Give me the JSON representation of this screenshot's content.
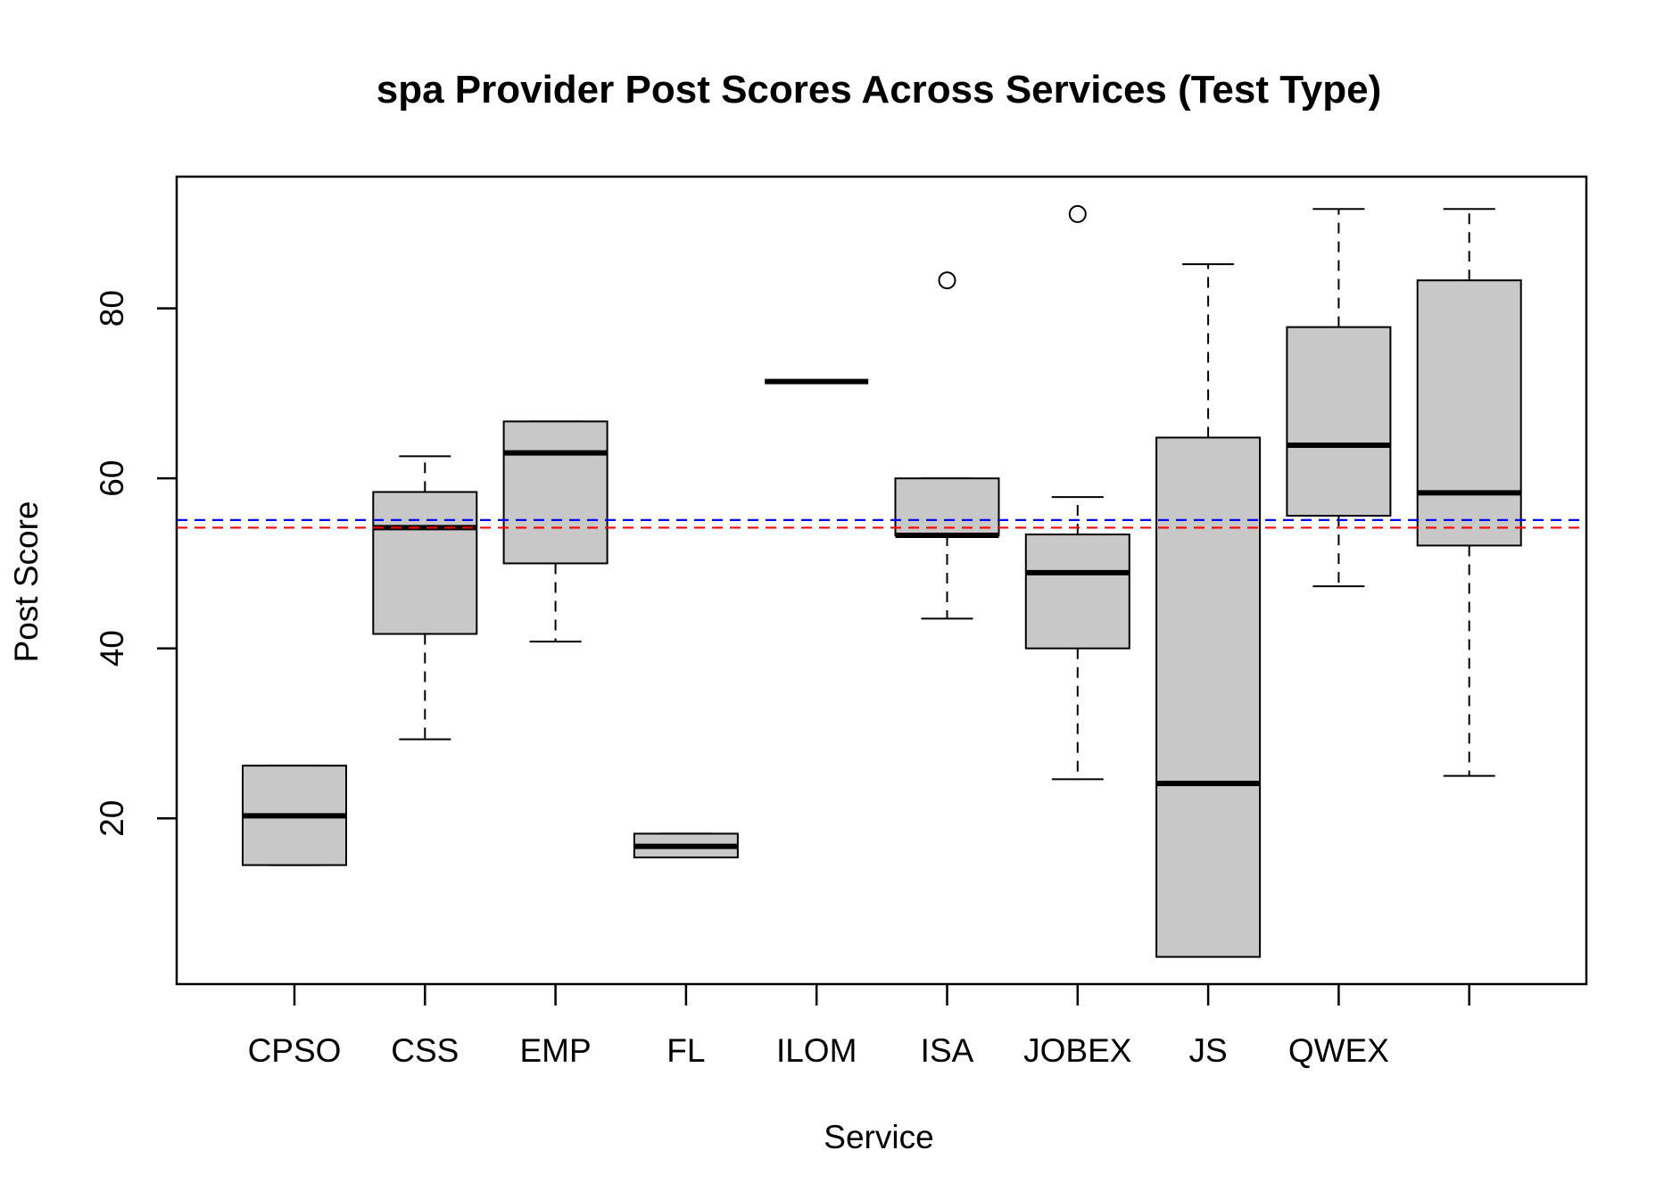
{
  "chart_data": {
    "type": "boxplot",
    "title": "spa Provider Post Scores Across Services (Test Type)",
    "xlabel": "Service",
    "ylabel": "Post Score",
    "ylim": [
      0.5,
      95.5
    ],
    "y_ticks": [
      20,
      40,
      60,
      80
    ],
    "categories": [
      "CPSO",
      "CSS",
      "EMP",
      "FL",
      "ILOM",
      "ISA",
      "JOBEX",
      "JS",
      "QWEX",
      ""
    ],
    "boxes": [
      {
        "category": "CPSO",
        "whisker_low": 14.5,
        "q1": 14.5,
        "median": 20.3,
        "q3": 26.2,
        "whisker_high": 26.2,
        "outliers": []
      },
      {
        "category": "CSS",
        "whisker_low": 29.3,
        "q1": 41.7,
        "median": 54.2,
        "q3": 58.4,
        "whisker_high": 62.6,
        "outliers": []
      },
      {
        "category": "EMP",
        "whisker_low": 40.8,
        "q1": 50.0,
        "median": 63.0,
        "q3": 66.7,
        "whisker_high": 66.7,
        "outliers": []
      },
      {
        "category": "FL",
        "whisker_low": 15.4,
        "q1": 15.4,
        "median": 16.7,
        "q3": 18.2,
        "whisker_high": 18.2,
        "outliers": []
      },
      {
        "category": "ILOM",
        "whisker_low": 71.4,
        "q1": 71.4,
        "median": 71.4,
        "q3": 71.4,
        "whisker_high": 71.4,
        "outliers": []
      },
      {
        "category": "ISA",
        "whisker_low": 43.5,
        "q1": 53.3,
        "median": 53.3,
        "q3": 60.0,
        "whisker_high": 60.0,
        "outliers": [
          83.3
        ]
      },
      {
        "category": "JOBEX",
        "whisker_low": 24.6,
        "q1": 40.0,
        "median": 48.9,
        "q3": 53.4,
        "whisker_high": 57.8,
        "outliers": [
          91.1
        ]
      },
      {
        "category": "JS",
        "whisker_low": 3.7,
        "q1": 3.7,
        "median": 24.1,
        "q3": 64.8,
        "whisker_high": 85.2,
        "outliers": []
      },
      {
        "category": "QWEX",
        "whisker_low": 47.3,
        "q1": 55.6,
        "median": 63.9,
        "q3": 77.8,
        "whisker_high": 91.7,
        "outliers": []
      },
      {
        "category": "",
        "whisker_low": 25.0,
        "q1": 52.1,
        "median": 58.3,
        "q3": 83.3,
        "whisker_high": 91.7,
        "outliers": []
      }
    ],
    "reference_lines": [
      {
        "value": 55.1,
        "color": "#0000ff",
        "style": "dashed"
      },
      {
        "value": 54.2,
        "color": "#ff0000",
        "style": "dashed"
      }
    ],
    "box_fill": "#c8c8c8",
    "grid": false
  }
}
